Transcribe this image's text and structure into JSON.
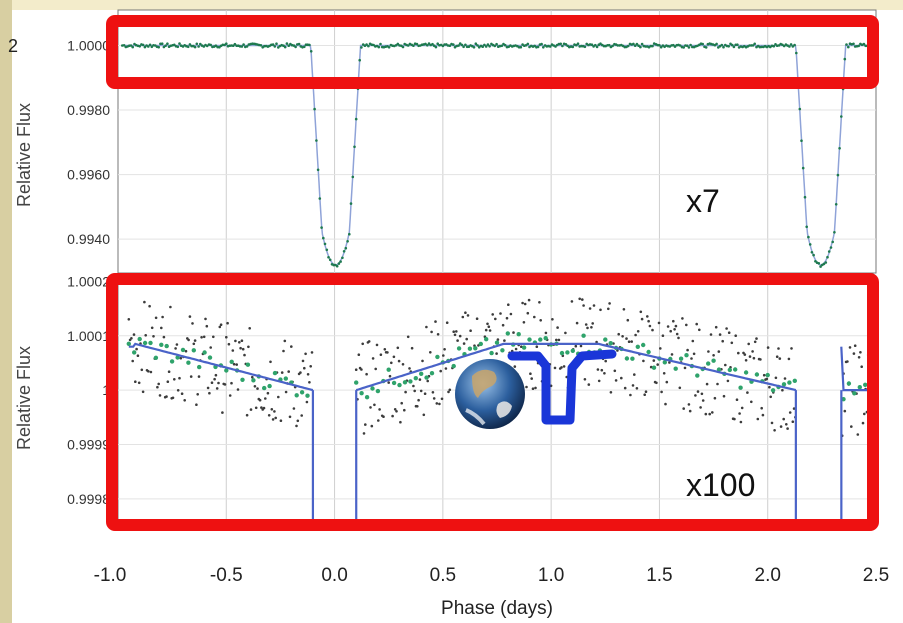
{
  "chart_data": [
    {
      "type": "scatter",
      "panel": "top",
      "ylabel": "Relative Flux",
      "yticks": [
        "1.0000",
        "0.9980",
        "0.9960",
        "0.9940"
      ],
      "ylim": [
        0.99295,
        1.0011
      ],
      "xlim": [
        -1.0,
        2.5
      ],
      "annotation": "x7",
      "cut_tick_label": "2",
      "series": [
        {
          "color": "#1e7a4f",
          "description": "binned points"
        },
        {
          "color": "#8fa3d8",
          "description": "model"
        }
      ],
      "eclipses": [
        {
          "start": -0.11,
          "end": 0.12,
          "depth": 0.9932
        },
        {
          "start": 2.13,
          "end": 2.36,
          "depth": 0.9932
        }
      ]
    },
    {
      "type": "scatter",
      "panel": "bottom",
      "ylabel": "Relative Flux",
      "yticks": [
        "1.0002",
        "1.0001",
        "1",
        "0.9999",
        "0.9998"
      ],
      "ylim": [
        0.99975,
        1.00021
      ],
      "xlim": [
        -1.0,
        2.5
      ],
      "xlabel": "Phase (days)",
      "xticks": [
        "-1.0",
        "-0.5",
        "0.0",
        "0.5",
        "1.0",
        "1.5",
        "2.0",
        "2.5"
      ],
      "annotation": "x100",
      "series": [
        {
          "color": "#3c3c3c",
          "description": "unbinned points"
        },
        {
          "color": "#2fa36b",
          "description": "binned points"
        },
        {
          "color": "#4a63c8",
          "description": "model"
        }
      ],
      "model_points": [
        {
          "x": -0.92,
          "y": 1.000085
        },
        {
          "x": -0.1,
          "y": 1.0
        },
        {
          "x": 0.1,
          "y": 1.0
        },
        {
          "x": 0.78,
          "y": 1.000085
        },
        {
          "x": 1.22,
          "y": 1.000085
        },
        {
          "x": 2.13,
          "y": 1.0
        }
      ]
    }
  ],
  "overlays": {
    "highlight_color": "#ee1111",
    "earth_icon": "earth-globe-icon",
    "curve_color": "#1a36d8"
  }
}
